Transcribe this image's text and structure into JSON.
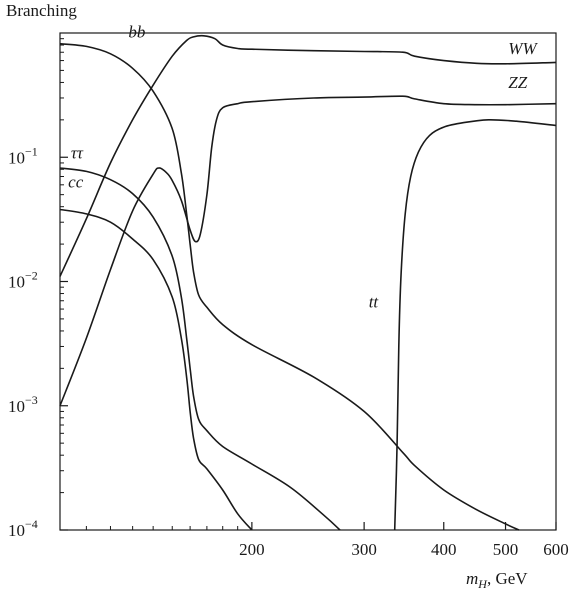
{
  "chart_data": {
    "type": "line",
    "ylabel": "Branching",
    "xlabel_main": "m",
    "xlabel_sub": "H",
    "xlabel_unit": ", GeV",
    "x_scale": "log",
    "y_scale": "log",
    "xlim": [
      100,
      600
    ],
    "ylim": [
      0.0001,
      1.0
    ],
    "x_ticks": [
      {
        "value": 200,
        "label": "200"
      },
      {
        "value": 300,
        "label": "300"
      },
      {
        "value": 400,
        "label": "400"
      },
      {
        "value": 500,
        "label": "500"
      },
      {
        "value": 600,
        "label": "600"
      }
    ],
    "y_ticks": [
      {
        "value": 0.0001,
        "base": "10",
        "exp": "−4"
      },
      {
        "value": 0.001,
        "base": "10",
        "exp": "−3"
      },
      {
        "value": 0.01,
        "base": "10",
        "exp": "−2"
      },
      {
        "value": 0.1,
        "base": "10",
        "exp": "−1"
      }
    ],
    "series": [
      {
        "name": "bb",
        "label_at": [
          128,
          0.92
        ],
        "points": [
          [
            100,
            0.82
          ],
          [
            110,
            0.78
          ],
          [
            120,
            0.68
          ],
          [
            130,
            0.52
          ],
          [
            140,
            0.34
          ],
          [
            150,
            0.17
          ],
          [
            155,
            0.075
          ],
          [
            158,
            0.035
          ],
          [
            160,
            0.02
          ],
          [
            162,
            0.012
          ],
          [
            165,
            0.0078
          ],
          [
            170,
            0.0062
          ],
          [
            180,
            0.0045
          ],
          [
            200,
            0.0031
          ],
          [
            250,
            0.0017
          ],
          [
            300,
            0.0009
          ],
          [
            345,
            0.00042
          ],
          [
            360,
            0.00033
          ],
          [
            400,
            0.00021
          ],
          [
            450,
            0.000146
          ],
          [
            500,
            0.000112
          ],
          [
            525,
            0.0001
          ]
        ]
      },
      {
        "name": "ττ",
        "label_at": [
          104,
          0.098
        ],
        "points": [
          [
            100,
            0.082
          ],
          [
            110,
            0.077
          ],
          [
            120,
            0.066
          ],
          [
            130,
            0.051
          ],
          [
            140,
            0.033
          ],
          [
            150,
            0.016
          ],
          [
            155,
            0.0075
          ],
          [
            158,
            0.0035
          ],
          [
            160,
            0.002
          ],
          [
            162,
            0.0012
          ],
          [
            165,
            0.00078
          ],
          [
            170,
            0.00063
          ],
          [
            180,
            0.00047
          ],
          [
            200,
            0.00034
          ],
          [
            230,
            0.00022
          ],
          [
            260,
            0.00013
          ],
          [
            275,
            0.0001
          ]
        ]
      },
      {
        "name": "cc",
        "label_at": [
          103,
          0.057
        ],
        "points": [
          [
            100,
            0.038
          ],
          [
            110,
            0.035
          ],
          [
            120,
            0.03
          ],
          [
            130,
            0.022
          ],
          [
            140,
            0.015
          ],
          [
            150,
            0.0075
          ],
          [
            155,
            0.0035
          ],
          [
            158,
            0.0017
          ],
          [
            160,
            0.0009
          ],
          [
            162,
            0.00055
          ],
          [
            165,
            0.00037
          ],
          [
            170,
            0.00031
          ],
          [
            180,
            0.00021
          ],
          [
            190,
            0.000135
          ],
          [
            200,
            0.0001
          ]
        ]
      },
      {
        "name": "WW",
        "label_at": [
          505,
          0.68
        ],
        "points": [
          [
            100,
            0.011
          ],
          [
            110,
            0.032
          ],
          [
            120,
            0.09
          ],
          [
            130,
            0.2
          ],
          [
            140,
            0.38
          ],
          [
            150,
            0.65
          ],
          [
            158,
            0.87
          ],
          [
            162,
            0.93
          ],
          [
            168,
            0.95
          ],
          [
            175,
            0.9
          ],
          [
            180,
            0.8
          ],
          [
            190,
            0.75
          ],
          [
            200,
            0.74
          ],
          [
            250,
            0.72
          ],
          [
            300,
            0.71
          ],
          [
            345,
            0.7
          ],
          [
            360,
            0.65
          ],
          [
            400,
            0.6
          ],
          [
            450,
            0.57
          ],
          [
            500,
            0.565
          ],
          [
            600,
            0.58
          ]
        ]
      },
      {
        "name": "ZZ",
        "label_at": [
          505,
          0.36
        ],
        "points": [
          [
            100,
            0.001
          ],
          [
            110,
            0.0035
          ],
          [
            120,
            0.0125
          ],
          [
            130,
            0.037
          ],
          [
            140,
            0.073
          ],
          [
            143,
            0.082
          ],
          [
            147,
            0.075
          ],
          [
            150,
            0.065
          ],
          [
            155,
            0.045
          ],
          [
            160,
            0.026
          ],
          [
            163,
            0.021
          ],
          [
            166,
            0.024
          ],
          [
            170,
            0.05
          ],
          [
            173,
            0.12
          ],
          [
            176,
            0.2
          ],
          [
            180,
            0.25
          ],
          [
            190,
            0.27
          ],
          [
            200,
            0.28
          ],
          [
            250,
            0.3
          ],
          [
            300,
            0.305
          ],
          [
            345,
            0.31
          ],
          [
            360,
            0.295
          ],
          [
            400,
            0.27
          ],
          [
            450,
            0.265
          ],
          [
            500,
            0.265
          ],
          [
            600,
            0.27
          ]
        ]
      },
      {
        "name": "tt",
        "label_at": [
          305,
          0.0062
        ],
        "points": [
          [
            335,
            0.0001
          ],
          [
            338,
            0.0005
          ],
          [
            340,
            0.003
          ],
          [
            343,
            0.012
          ],
          [
            348,
            0.035
          ],
          [
            355,
            0.07
          ],
          [
            365,
            0.11
          ],
          [
            380,
            0.15
          ],
          [
            400,
            0.175
          ],
          [
            430,
            0.19
          ],
          [
            470,
            0.2
          ],
          [
            520,
            0.195
          ],
          [
            600,
            0.18
          ]
        ]
      }
    ]
  }
}
